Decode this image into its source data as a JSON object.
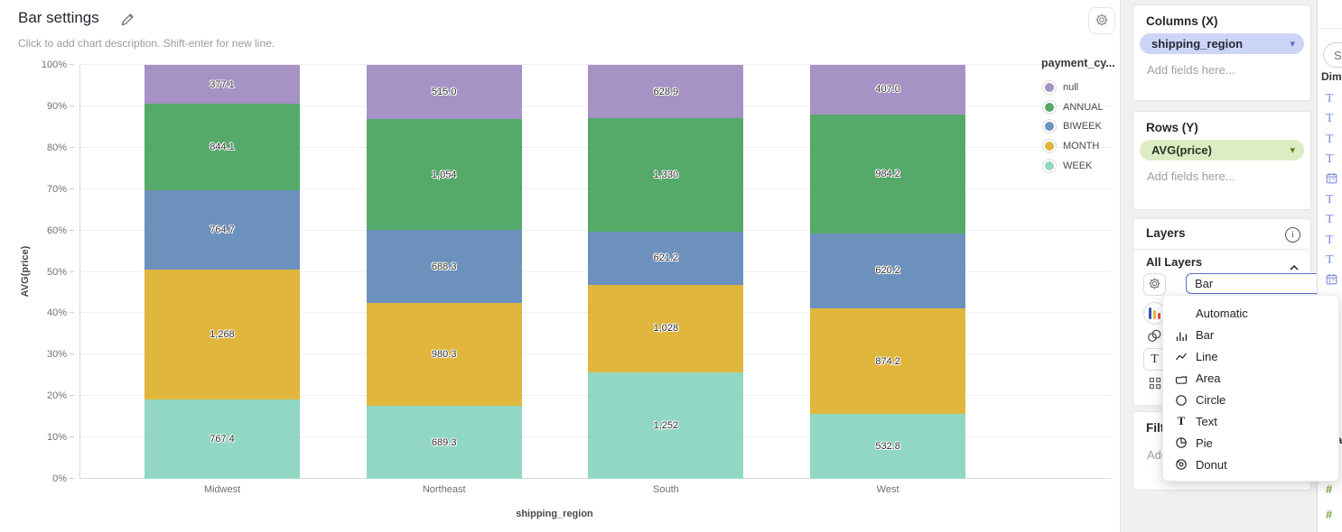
{
  "chart": {
    "title": "Bar settings",
    "description": "Click to add chart description. Shift-enter for new line."
  },
  "chart_data": {
    "type": "bar",
    "stacked": "percent",
    "title": "Bar settings",
    "xlabel": "shipping_region",
    "ylabel": "AVG(price)",
    "legend_title": "payment_cy...",
    "legend_position": "right",
    "grid": true,
    "ylim": [
      "0%",
      "100%"
    ],
    "y_ticks": [
      "0%",
      "10%",
      "20%",
      "30%",
      "40%",
      "50%",
      "60%",
      "70%",
      "80%",
      "90%",
      "100%"
    ],
    "categories": [
      "Midwest",
      "Northeast",
      "South",
      "West"
    ],
    "series": [
      {
        "name": "WEEK",
        "color": "#92d7c3",
        "values": [
          767.4,
          689.3,
          1252,
          532.8
        ],
        "labels": [
          "767.4",
          "689.3",
          "1,252",
          "532.8"
        ]
      },
      {
        "name": "MONTH",
        "color": "#e0b63c",
        "values": [
          1268,
          980.3,
          1028,
          874.2
        ],
        "labels": [
          "1,268",
          "980.3",
          "1,028",
          "874.2"
        ]
      },
      {
        "name": "BIWEEK",
        "color": "#6d91bd",
        "values": [
          764.7,
          688.3,
          621.2,
          620.2
        ],
        "labels": [
          "764.7",
          "688.3",
          "621.2",
          "620.2"
        ]
      },
      {
        "name": "ANNUAL",
        "color": "#55aa69",
        "values": [
          844.1,
          1054,
          1330,
          984.2
        ],
        "labels": [
          "844.1",
          "1,054",
          "1,330",
          "984.2"
        ]
      },
      {
        "name": "null",
        "color": "#a692c4",
        "values": [
          377.1,
          515.0,
          628.9,
          407.0
        ],
        "labels": [
          "377.1",
          "515.0",
          "628.9",
          "407.0"
        ]
      }
    ],
    "legend": [
      {
        "label": "null",
        "color": "#a692c4"
      },
      {
        "label": "ANNUAL",
        "color": "#55aa69"
      },
      {
        "label": "BIWEEK",
        "color": "#6d91bd"
      },
      {
        "label": "MONTH",
        "color": "#e0b63c"
      },
      {
        "label": "WEEK",
        "color": "#92d7c3"
      }
    ]
  },
  "panel": {
    "columns": {
      "header": "Columns (X)",
      "field": "shipping_region",
      "placeholder": "Add fields here...",
      "pill_bg": "#cdd5f6",
      "pill_text": "#232a35",
      "caret_color": "#5a6bd0"
    },
    "rows": {
      "header": "Rows (Y)",
      "field": "AVG(price)",
      "placeholder": "Add fields here...",
      "pill_bg": "#ddedc3",
      "pill_text": "#2b3324",
      "caret_color": "#5c7d24"
    },
    "layers": {
      "header": "Layers",
      "subheader": "All Layers",
      "type_value": "Bar",
      "select_border": "#5b6ecb"
    },
    "layer_type_menu": {
      "items": [
        {
          "label": "Automatic",
          "icon": "automatic"
        },
        {
          "label": "Bar",
          "icon": "bar"
        },
        {
          "label": "Line",
          "icon": "line"
        },
        {
          "label": "Area",
          "icon": "area"
        },
        {
          "label": "Circle",
          "icon": "circle"
        },
        {
          "label": "Text",
          "icon": "text"
        },
        {
          "label": "Pie",
          "icon": "pie"
        },
        {
          "label": "Donut",
          "icon": "donut"
        }
      ]
    },
    "filters": {
      "header": "Filters",
      "placeholder": "Add fields here..."
    }
  },
  "fields_panel": {
    "search_placeholder": "Search",
    "dimensions_label": "Dimensions",
    "measures_label": "Measures",
    "dimension_icon_color": "#7b8ce0",
    "measure_icon_color": "#76a73e",
    "dimension_fields": [
      {
        "icon": "text"
      },
      {
        "icon": "text"
      },
      {
        "icon": "text"
      },
      {
        "icon": "text"
      },
      {
        "icon": "calendar"
      },
      {
        "icon": "text"
      },
      {
        "icon": "text"
      },
      {
        "icon": "text"
      },
      {
        "icon": "text"
      },
      {
        "icon": "calendar"
      },
      {
        "icon": "text"
      },
      {
        "icon": "text"
      },
      {
        "icon": "calendar"
      },
      {
        "icon": "text"
      },
      {
        "icon": "text"
      },
      {
        "icon": "text"
      }
    ],
    "measure_fields": [
      {
        "icon": "hash"
      },
      {
        "icon": "hash"
      },
      {
        "icon": "hash"
      },
      {
        "icon": "hash"
      }
    ]
  }
}
